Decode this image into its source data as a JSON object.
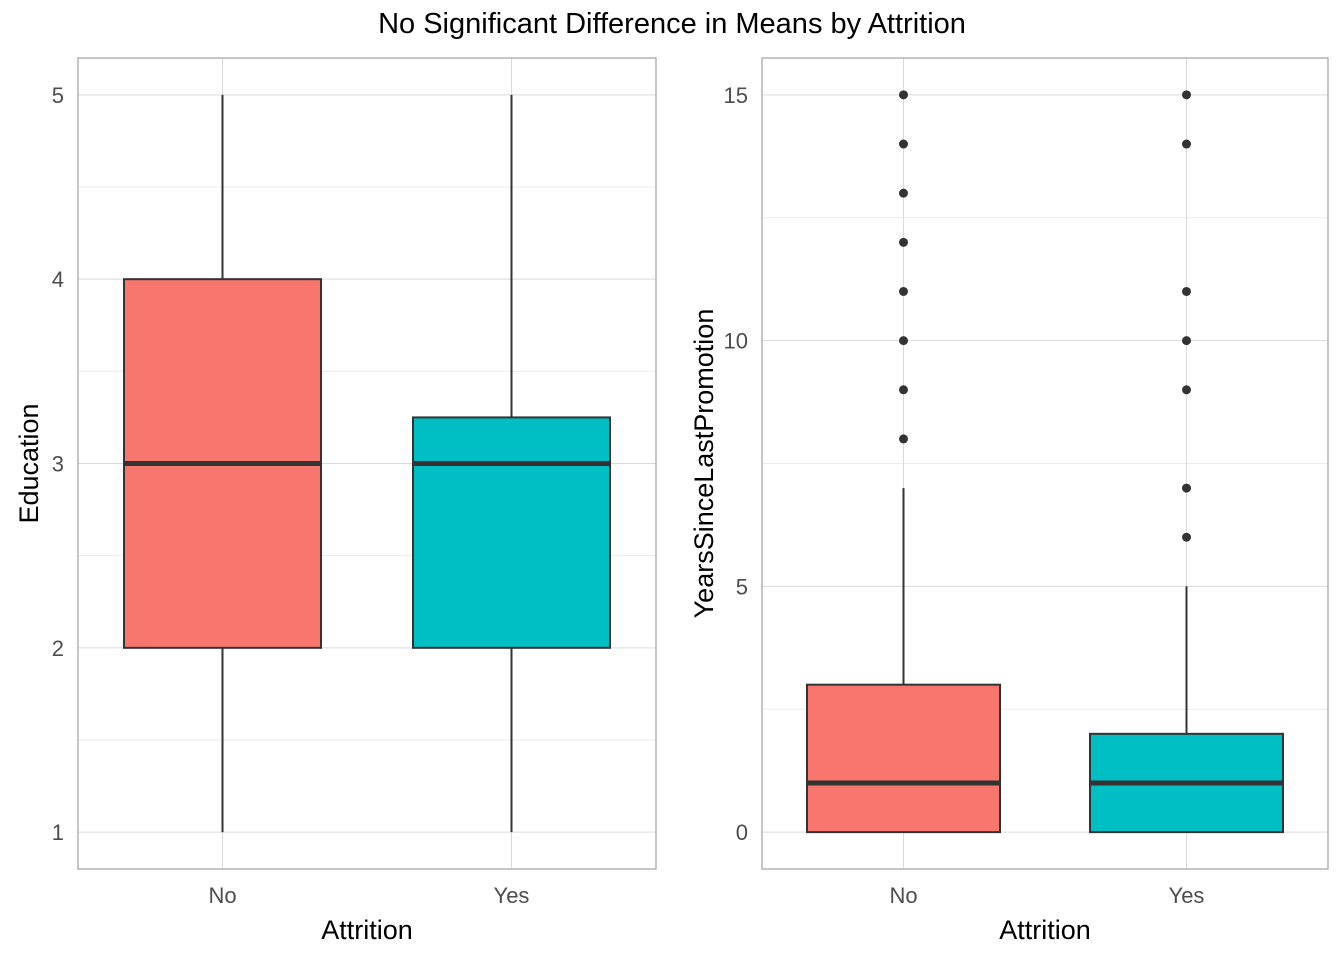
{
  "title": "No Significant Difference in Means by Attrition",
  "chart_data": [
    {
      "type": "box",
      "xlabel": "Attrition",
      "ylabel": "Education",
      "categories": [
        "No",
        "Yes"
      ],
      "ylim": [
        0.8,
        5.2
      ],
      "yticks": [
        1,
        2,
        3,
        4,
        5
      ],
      "grid": true,
      "boxes": [
        {
          "category": "No",
          "color": "#F8766D",
          "whisker_low": 1,
          "q1": 2,
          "median": 3,
          "q3": 4,
          "whisker_high": 5,
          "outliers": []
        },
        {
          "category": "Yes",
          "color": "#00BFC4",
          "whisker_low": 1,
          "q1": 2,
          "median": 3,
          "q3": 3.25,
          "whisker_high": 5,
          "outliers": []
        }
      ]
    },
    {
      "type": "box",
      "xlabel": "Attrition",
      "ylabel": "YearsSinceLastPromotion",
      "categories": [
        "No",
        "Yes"
      ],
      "ylim": [
        -0.75,
        15.75
      ],
      "yticks": [
        0,
        5,
        10,
        15
      ],
      "grid": true,
      "boxes": [
        {
          "category": "No",
          "color": "#F8766D",
          "whisker_low": 0,
          "q1": 0,
          "median": 1,
          "q3": 3,
          "whisker_high": 7,
          "outliers": [
            8,
            9,
            10,
            11,
            12,
            13,
            14,
            15
          ]
        },
        {
          "category": "Yes",
          "color": "#00BFC4",
          "whisker_low": 0,
          "q1": 0,
          "median": 1,
          "q3": 2,
          "whisker_high": 5,
          "outliers": [
            6,
            7,
            9,
            10,
            11,
            14,
            15
          ]
        }
      ]
    }
  ]
}
